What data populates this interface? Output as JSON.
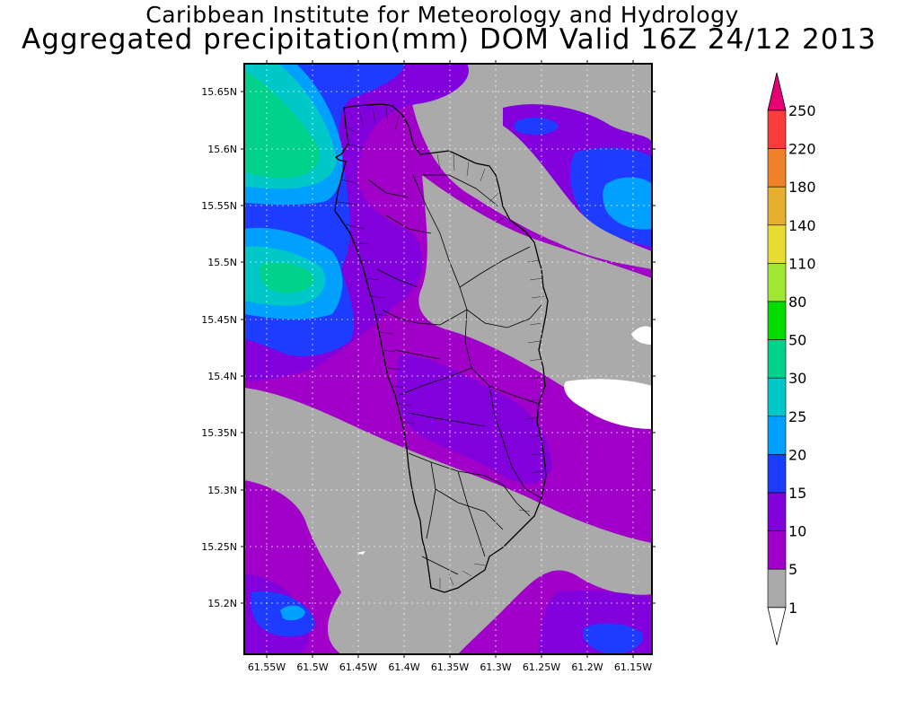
{
  "header": {
    "line1": "Caribbean Institute for Meteorology and Hydrology",
    "line2": "Aggregated precipitation(mm) DOM Valid 16Z 24/12 2013"
  },
  "map": {
    "lat_labels": [
      "15.65N",
      "15.6N",
      "15.55N",
      "15.5N",
      "15.45N",
      "15.4N",
      "15.35N",
      "15.3N",
      "15.25N",
      "15.2N"
    ],
    "lon_labels": [
      "61.55W",
      "61.5W",
      "61.45W",
      "61.4W",
      "61.35W",
      "61.3W",
      "61.25W",
      "61.2W",
      "61.15W"
    ],
    "colors": {
      "none": "#ffffff",
      "1-5": "#aaaaaa",
      "5-10": "#a000c8",
      "10-15": "#8200dc",
      "15-20": "#1e3cff",
      "20-25": "#00a0ff",
      "25-30": "#00c8c8",
      "30-50": "#00d28c"
    }
  },
  "colorbar": {
    "levels": [
      "250",
      "220",
      "180",
      "140",
      "110",
      "80",
      "50",
      "30",
      "25",
      "20",
      "15",
      "10",
      "5",
      "1"
    ],
    "colors": [
      "#e60073",
      "#fa3c3c",
      "#f08228",
      "#e6af2d",
      "#e6dc32",
      "#a0e632",
      "#00dc00",
      "#00d28c",
      "#00c8c8",
      "#00a0ff",
      "#1e3cff",
      "#8200dc",
      "#a000c8",
      "#aaaaaa",
      "#ffffff"
    ]
  }
}
